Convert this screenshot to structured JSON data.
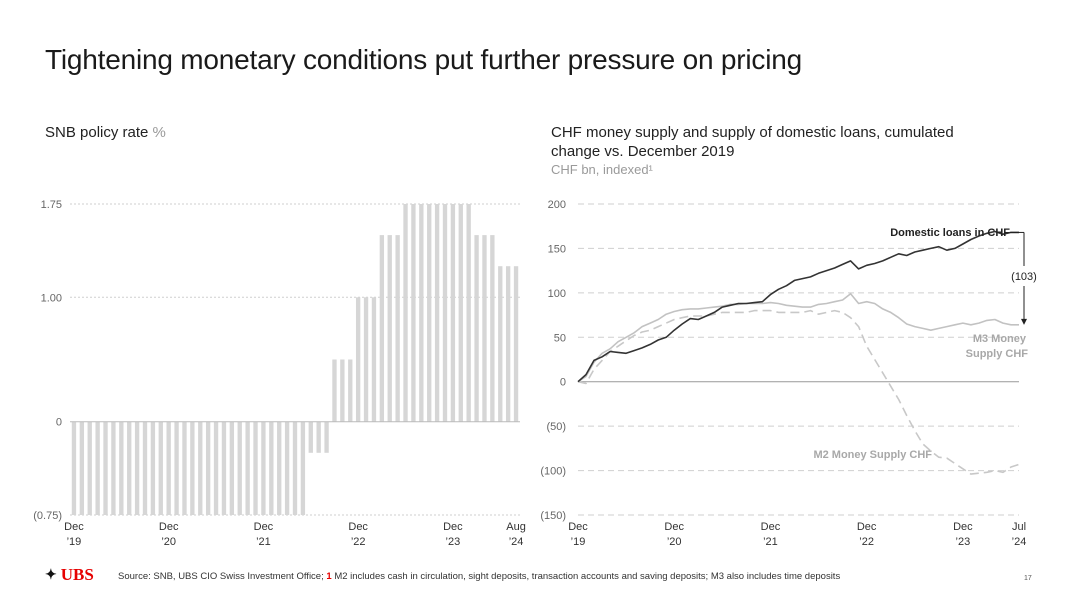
{
  "title": "Tightening monetary conditions put further pressure on pricing",
  "left_title": "SNB policy rate",
  "left_unit": "%",
  "right_title_line1": "CHF money supply and supply of domestic loans, cumulated",
  "right_title_line2": "change vs. December 2019",
  "right_subunit": "CHF bn, indexed¹",
  "logo_text": "UBS",
  "footer": {
    "prefix": "Source: SNB, UBS CIO Swiss Investment Office;",
    "note_marker": "1",
    "note": "M2 includes cash in circulation, sight deposits, transaction accounts and saving deposits; M3 also includes time deposits"
  },
  "page_number": "17",
  "chart_data": [
    {
      "type": "bar",
      "title": "SNB policy rate %",
      "ylim": [
        -0.75,
        1.75
      ],
      "yticks": [
        -0.75,
        0,
        1.0,
        1.75
      ],
      "ytick_labels": [
        "(0.75)",
        "0",
        "1.00",
        "1.75"
      ],
      "grid": true,
      "color": "#d6d6d6",
      "values": [
        -0.75,
        -0.75,
        -0.75,
        -0.75,
        -0.75,
        -0.75,
        -0.75,
        -0.75,
        -0.75,
        -0.75,
        -0.75,
        -0.75,
        -0.75,
        -0.75,
        -0.75,
        -0.75,
        -0.75,
        -0.75,
        -0.75,
        -0.75,
        -0.75,
        -0.75,
        -0.75,
        -0.75,
        -0.75,
        -0.75,
        -0.75,
        -0.75,
        -0.75,
        -0.75,
        -0.25,
        -0.25,
        -0.25,
        0.5,
        0.5,
        0.5,
        1.0,
        1.0,
        1.0,
        1.5,
        1.5,
        1.5,
        1.75,
        1.75,
        1.75,
        1.75,
        1.75,
        1.75,
        1.75,
        1.75,
        1.75,
        1.5,
        1.5,
        1.5,
        1.25,
        1.25,
        1.25
      ],
      "x_tick_labels": [
        {
          "index": 0,
          "line1": "Dec",
          "line2": "’19"
        },
        {
          "index": 12,
          "line1": "Dec",
          "line2": "’20"
        },
        {
          "index": 24,
          "line1": "Dec",
          "line2": "’21"
        },
        {
          "index": 36,
          "line1": "Dec",
          "line2": "’22"
        },
        {
          "index": 48,
          "line1": "Dec",
          "line2": "’23"
        },
        {
          "index": 56,
          "line1": "Aug",
          "line2": "’24"
        }
      ]
    },
    {
      "type": "line",
      "title": "CHF money supply and supply of domestic loans, cumulated change vs. December 2019",
      "ylabel": "CHF bn, indexed",
      "ylim": [
        -150,
        200
      ],
      "yticks": [
        -150,
        -100,
        -50,
        0,
        50,
        100,
        150,
        200
      ],
      "ytick_labels": [
        "(150)",
        "(100)",
        "(50)",
        "0",
        "50",
        "100",
        "150",
        "200"
      ],
      "x_tick_labels": [
        {
          "month": 0,
          "line1": "Dec",
          "line2": "’19"
        },
        {
          "month": 12,
          "line1": "Dec",
          "line2": "’20"
        },
        {
          "month": 24,
          "line1": "Dec",
          "line2": "’21"
        },
        {
          "month": 36,
          "line1": "Dec",
          "line2": "’22"
        },
        {
          "month": 48,
          "line1": "Dec",
          "line2": "’23"
        },
        {
          "month": 55,
          "line1": "Jul",
          "line2": "’24"
        }
      ],
      "series": [
        {
          "name": "Domestic loans in CHF",
          "label": "Domestic loans in CHF",
          "color": "#333333",
          "style": "solid",
          "x": [
            0,
            1,
            2,
            3,
            4,
            5,
            6,
            7,
            8,
            9,
            10,
            11,
            12,
            13,
            14,
            15,
            16,
            17,
            18,
            19,
            20,
            21,
            22,
            23,
            24,
            25,
            26,
            27,
            28,
            29,
            30,
            31,
            32,
            33,
            34,
            35,
            36,
            37,
            38,
            39,
            40,
            41,
            42,
            43,
            44,
            45,
            46,
            47,
            48,
            49,
            50,
            51,
            52,
            53,
            54,
            55
          ],
          "values": [
            0,
            8,
            24,
            28,
            34,
            33,
            32,
            35,
            38,
            42,
            47,
            50,
            58,
            65,
            71,
            70,
            74,
            78,
            84,
            86,
            88,
            88,
            89,
            90,
            98,
            104,
            108,
            114,
            116,
            118,
            122,
            125,
            128,
            132,
            136,
            127,
            131,
            133,
            136,
            140,
            144,
            142,
            146,
            148,
            150,
            152,
            148,
            150,
            155,
            160,
            164,
            167,
            169,
            166,
            168,
            168
          ]
        },
        {
          "name": "M3 Money Supply CHF",
          "label_line1": "M3 Money",
          "label_line2": "Supply CHF",
          "color": "#c2c2c2",
          "style": "solid",
          "x": [
            0,
            1,
            2,
            3,
            4,
            5,
            6,
            7,
            8,
            9,
            10,
            11,
            12,
            13,
            14,
            15,
            16,
            17,
            18,
            19,
            20,
            21,
            22,
            23,
            24,
            25,
            26,
            27,
            28,
            29,
            30,
            31,
            32,
            33,
            34,
            35,
            36,
            37,
            38,
            39,
            40,
            41,
            42,
            43,
            44,
            45,
            46,
            47,
            48,
            49,
            50,
            51,
            52,
            53,
            54,
            55
          ],
          "values": [
            0,
            6,
            22,
            32,
            37,
            45,
            50,
            55,
            62,
            66,
            70,
            76,
            79,
            81,
            82,
            82,
            83,
            84,
            85,
            87,
            87,
            88,
            88,
            88,
            89,
            88,
            86,
            85,
            84,
            84,
            87,
            88,
            90,
            92,
            99,
            88,
            90,
            88,
            82,
            78,
            72,
            65,
            62,
            60,
            58,
            60,
            62,
            64,
            66,
            64,
            66,
            69,
            70,
            66,
            64,
            64
          ]
        },
        {
          "name": "M2 Money Supply CHF",
          "label": "M2 Money Supply CHF",
          "color": "#c8c8c8",
          "style": "dashed",
          "x": [
            0,
            1,
            2,
            3,
            4,
            5,
            6,
            7,
            8,
            9,
            10,
            11,
            12,
            13,
            14,
            15,
            16,
            17,
            18,
            19,
            20,
            21,
            22,
            23,
            24,
            25,
            26,
            27,
            28,
            29,
            30,
            31,
            32,
            33,
            34,
            35,
            36,
            37,
            38,
            39,
            40,
            41,
            42,
            43,
            44,
            45,
            46,
            47,
            48,
            49,
            50,
            51,
            52,
            53,
            54,
            55
          ],
          "values": [
            0,
            -2,
            14,
            24,
            34,
            40,
            46,
            52,
            56,
            58,
            62,
            66,
            70,
            72,
            74,
            74,
            74,
            76,
            78,
            78,
            78,
            78,
            80,
            80,
            80,
            78,
            78,
            78,
            78,
            80,
            76,
            78,
            80,
            78,
            72,
            62,
            40,
            25,
            10,
            -5,
            -20,
            -38,
            -55,
            -70,
            -78,
            -85,
            -86,
            -92,
            -98,
            -104,
            -103,
            -102,
            -100,
            -102,
            -96,
            -93
          ]
        }
      ],
      "annotations": [
        {
          "text": "(103)",
          "between": [
            "Domestic loans in CHF",
            "M3 Money Supply CHF"
          ],
          "month": 55
        }
      ]
    }
  ]
}
